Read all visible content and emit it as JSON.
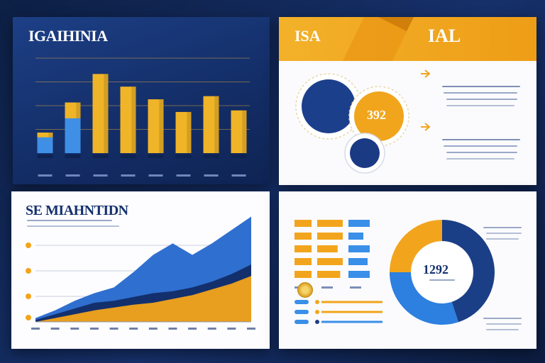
{
  "panel_top_left": {
    "title": "IGAIHINIA",
    "bar_labels": [
      "",
      "",
      "",
      "",
      "",
      "",
      "",
      ""
    ],
    "colors": {
      "bar_gold": "#f0b428",
      "bar_blue": "#3f8fe6",
      "grid": "#c79a3e"
    }
  },
  "panel_top_right": {
    "header_left": "ISA",
    "header_mid": "",
    "header_right": "IAL",
    "circle_large": "",
    "circle_gold": "392",
    "circle_small": "",
    "stat_1": "",
    "stat_2": "",
    "colors": {
      "header": "#f2a81e",
      "navy": "#1b3d8a",
      "gold": "#eea51a"
    }
  },
  "panel_bottom_left": {
    "title": "SE MIAHNTIDN",
    "y_ticks": [
      "",
      "",
      "",
      ""
    ],
    "colors": {
      "gold": "#f3a41a",
      "navy": "#13306d",
      "blue": "#2f6fcf"
    }
  },
  "panel_bottom_right": {
    "header_left": "",
    "header_mid": "",
    "donut_value": "1292",
    "right_label_top": "",
    "right_label_bottom": "",
    "progress_value": "",
    "colors": {
      "gold": "#f2a51c",
      "navy": "#1b3f86",
      "blue": "#2d7fe0",
      "bar_blue": "#3a8fe8"
    }
  },
  "chart_data": [
    {
      "type": "bar",
      "title": "IGAIHINIA",
      "categories": [
        "",
        "",
        "",
        "",
        "",
        "",
        "",
        ""
      ],
      "series": [
        {
          "values": [
            13,
            32,
            50,
            42,
            34,
            26,
            36,
            27
          ]
        },
        {
          "values": [
            10,
            22,
            0,
            0,
            0,
            0,
            0,
            0
          ]
        }
      ],
      "ylim": [
        0,
        60
      ],
      "grid": true
    },
    {
      "type": "area",
      "title": "SE MIAHNTIDN",
      "x": [
        1,
        2,
        3,
        4,
        5,
        6,
        7,
        8,
        9,
        10,
        11,
        12
      ],
      "series": [
        {
          "values": [
            4,
            12,
            22,
            30,
            36,
            52,
            70,
            82,
            70,
            82,
            96,
            110
          ]
        },
        {
          "values": [
            2,
            8,
            14,
            20,
            22,
            26,
            30,
            32,
            36,
            42,
            50,
            60
          ]
        },
        {
          "values": [
            0,
            4,
            8,
            12,
            15,
            18,
            20,
            24,
            28,
            34,
            40,
            48
          ]
        }
      ],
      "ylim": [
        0,
        120
      ]
    },
    {
      "type": "pie",
      "title": "",
      "labels": [
        "",
        "",
        ""
      ],
      "values": [
        45,
        30,
        25
      ],
      "center_label": "1292"
    },
    {
      "type": "bar",
      "title": "",
      "categories": [
        "",
        "",
        "",
        "",
        ""
      ],
      "series": [
        {
          "values": [
            1,
            1,
            1,
            1,
            1
          ]
        },
        {
          "values": [
            1,
            1,
            0.8,
            1,
            0.9
          ]
        },
        {
          "values": [
            1,
            0.7,
            1,
            0.9,
            1
          ]
        }
      ]
    }
  ]
}
